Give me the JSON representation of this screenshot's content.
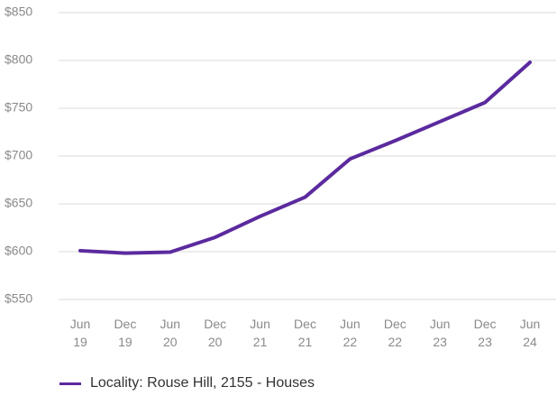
{
  "chart_data": {
    "type": "line",
    "categories": [
      "Jun 19",
      "Dec 19",
      "Jun 20",
      "Dec 20",
      "Jun 21",
      "Dec 21",
      "Jun 22",
      "Dec 22",
      "Jun 23",
      "Dec 23",
      "Jun 24"
    ],
    "series": [
      {
        "name": "Locality: Rouse Hill, 2155 - Houses",
        "color": "#5b2a9e",
        "values": [
          601,
          598.5,
          599.5,
          615,
          637,
          657,
          697,
          716,
          736,
          756,
          798
        ]
      }
    ],
    "ylim": [
      550,
      850
    ],
    "yticks": [
      {
        "value": 550,
        "label": "$550"
      },
      {
        "value": 600,
        "label": "$600"
      },
      {
        "value": 650,
        "label": "$650"
      },
      {
        "value": 700,
        "label": "$700"
      },
      {
        "value": 750,
        "label": "$750"
      },
      {
        "value": 800,
        "label": "$800"
      },
      {
        "value": 850,
        "label": "$850"
      }
    ],
    "grid": true,
    "legend": "bottom-left"
  }
}
